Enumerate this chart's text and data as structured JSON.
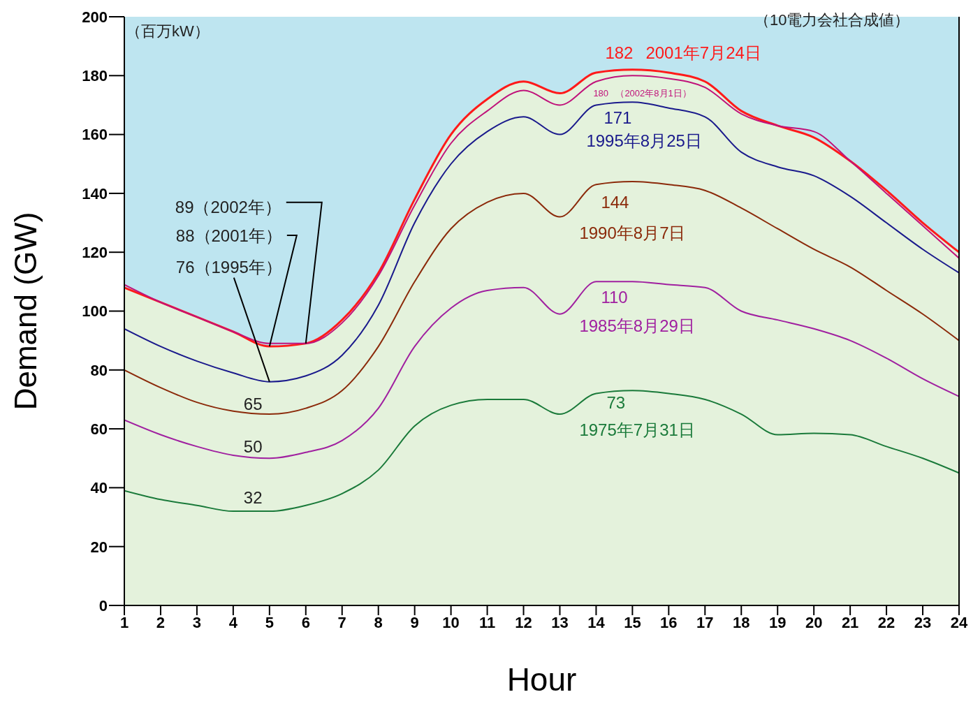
{
  "chart_data": {
    "type": "line",
    "xlabel": "Hour",
    "ylabel": "Demand (GW)",
    "x": [
      1,
      2,
      3,
      4,
      5,
      6,
      7,
      8,
      9,
      10,
      11,
      12,
      13,
      14,
      15,
      16,
      17,
      18,
      19,
      20,
      21,
      22,
      23,
      24
    ],
    "xlim": [
      1,
      24
    ],
    "xticks": [
      1,
      2,
      3,
      4,
      5,
      6,
      7,
      8,
      9,
      10,
      11,
      12,
      13,
      14,
      15,
      16,
      17,
      18,
      19,
      20,
      21,
      22,
      23,
      24
    ],
    "ylim": [
      0,
      200
    ],
    "yticks": [
      0,
      20,
      40,
      60,
      80,
      100,
      120,
      140,
      160,
      180,
      200
    ],
    "grid": false,
    "bands": [
      {
        "axis": "y",
        "from": 0,
        "to": 200,
        "color": "#bee5f0"
      }
    ],
    "legend": false,
    "marker": "none",
    "line_style": "solid",
    "series": [
      {
        "name": "2001年7月24日",
        "type": "area",
        "color": "#ff1a1a",
        "values": [
          108,
          103,
          98,
          93,
          88,
          89,
          97,
          113,
          138,
          160,
          172,
          178,
          174,
          181,
          182,
          181,
          178,
          168,
          163,
          159,
          151,
          141,
          130,
          120
        ]
      },
      {
        "name": "（2002年8月1日）",
        "color": "#c0127a",
        "values": [
          109,
          103,
          98,
          93,
          89,
          89,
          96,
          112,
          136,
          157,
          168,
          175,
          170,
          178,
          180,
          179,
          176,
          167,
          163,
          161,
          151,
          140,
          129,
          118
        ]
      },
      {
        "name": "1995年8月25日",
        "color": "#1a1a8c",
        "values": [
          94,
          88,
          83,
          79,
          76,
          78,
          85,
          102,
          130,
          150,
          161,
          166,
          160,
          170,
          171,
          169,
          166,
          154,
          149,
          146,
          139,
          130,
          121,
          113
        ]
      },
      {
        "name": "1990年8月7日",
        "color": "#8b2a0a",
        "values": [
          80,
          74,
          69,
          66,
          65,
          67,
          73,
          88,
          110,
          128,
          137,
          140,
          132,
          143,
          144,
          143,
          141,
          135,
          128,
          121,
          115,
          107,
          99,
          90
        ]
      },
      {
        "name": "1985年8月29日",
        "color": "#a020a0",
        "values": [
          63,
          58,
          54,
          51,
          50,
          52,
          56,
          67,
          88,
          101,
          107,
          108,
          99,
          110,
          110,
          109,
          108,
          100,
          97,
          94,
          90,
          84,
          77,
          71
        ]
      },
      {
        "name": "1975年7月31日",
        "color": "#1a7a3a",
        "values": [
          39,
          36,
          34,
          32,
          32,
          34,
          38,
          46,
          61,
          68,
          70,
          70,
          65,
          72,
          73,
          72,
          70,
          65,
          58,
          58.5,
          58,
          54,
          50,
          45
        ]
      }
    ],
    "annotations": [
      "（百万kW）",
      "（10電力会社合成値）",
      {
        "text": "182",
        "x": 15,
        "y": 182
      },
      {
        "text": "180",
        "x": 15,
        "y": 180
      },
      {
        "text": "171",
        "x": 15,
        "y": 171
      },
      {
        "text": "144",
        "x": 15,
        "y": 144
      },
      {
        "text": "110",
        "x": 15,
        "y": 110
      },
      {
        "text": "73",
        "x": 15,
        "y": 73
      },
      {
        "text": "65",
        "x": 5,
        "y": 65
      },
      {
        "text": "50",
        "x": 5,
        "y": 50
      },
      {
        "text": "32",
        "x": 5,
        "y": 32
      },
      {
        "text": "89（2002年）",
        "x": 6,
        "y": 89
      },
      {
        "text": "88（2001年）",
        "x": 5,
        "y": 88
      },
      {
        "text": "76（1995年）",
        "x": 5,
        "y": 76
      }
    ]
  }
}
